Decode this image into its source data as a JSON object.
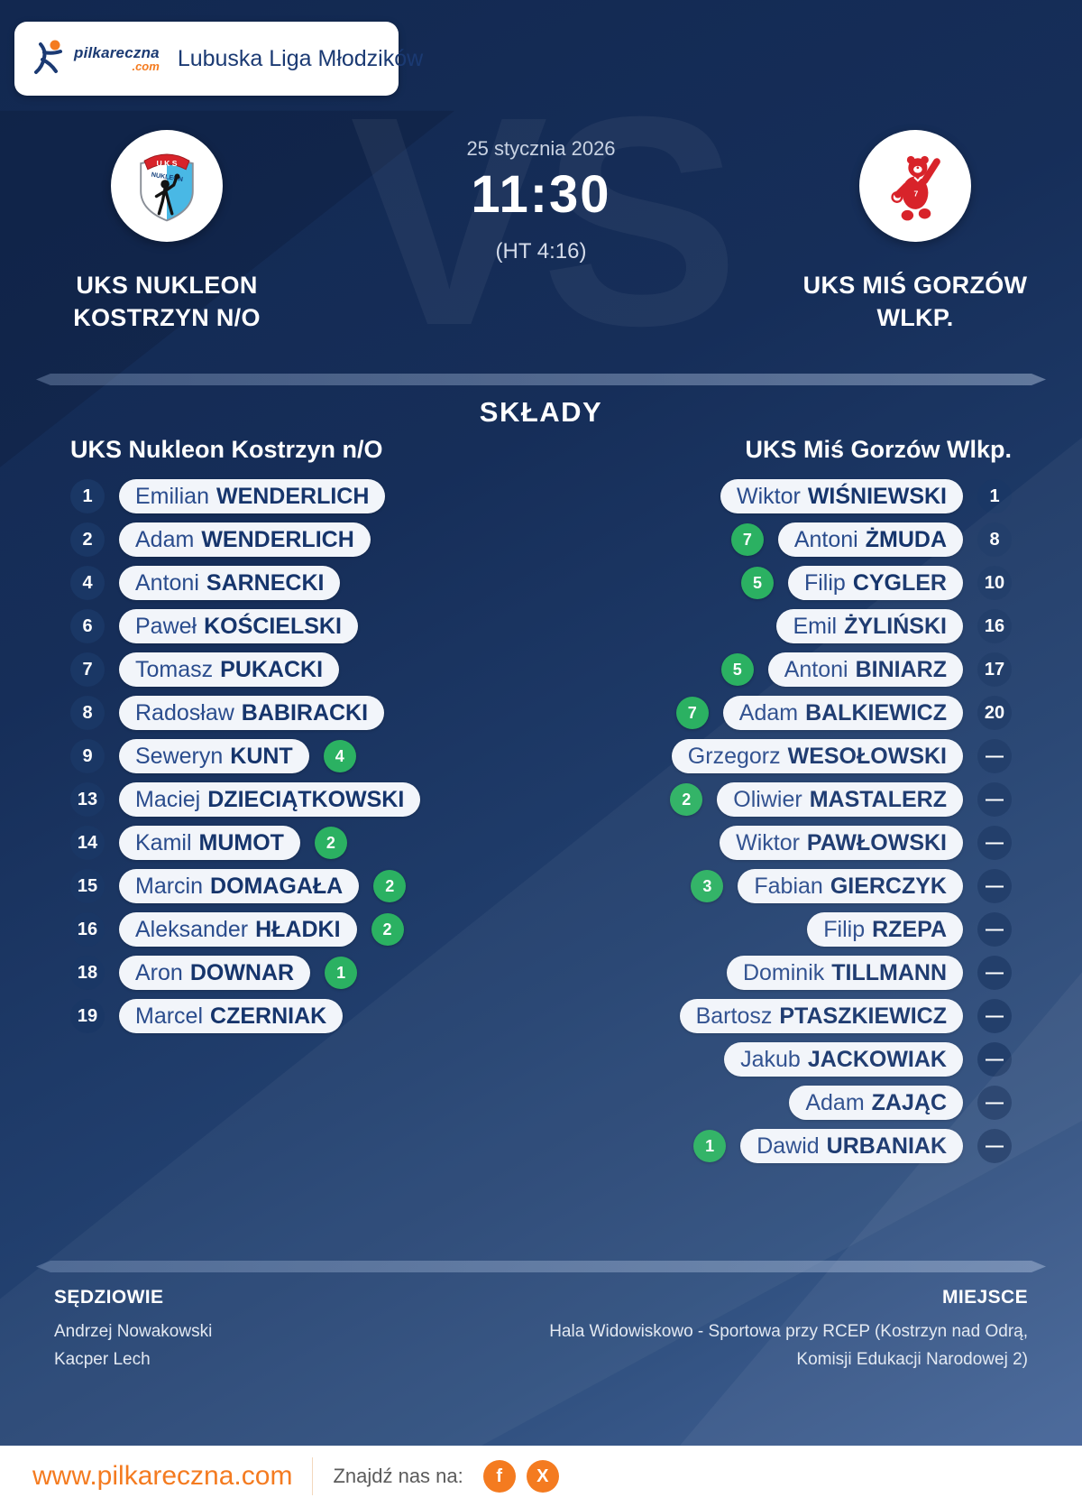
{
  "header": {
    "logo_text": "pilkareczna",
    "logo_tld": ".com",
    "league": "Lubuska Liga Młodzików"
  },
  "match": {
    "date": "25 stycznia 2026",
    "time": "11:30",
    "halftime": "(HT 4:16)",
    "vs_watermark": "VS",
    "home": {
      "name_line1": "UKS NUKLEON",
      "name_line2": "KOSTRZYN N/O"
    },
    "away": {
      "name_line1": "UKS MIŚ GORZÓW",
      "name_line2": "WLKP."
    }
  },
  "lineups": {
    "title": "SKŁADY",
    "empty_number_symbol": "—",
    "home": {
      "team": "UKS Nukleon Kostrzyn n/O",
      "players": [
        {
          "number": "1",
          "first": "Emilian",
          "last": "WENDERLICH",
          "goals": ""
        },
        {
          "number": "2",
          "first": "Adam",
          "last": "WENDERLICH",
          "goals": ""
        },
        {
          "number": "4",
          "first": "Antoni",
          "last": "SARNECKI",
          "goals": ""
        },
        {
          "number": "6",
          "first": "Paweł",
          "last": "KOŚCIELSKI",
          "goals": ""
        },
        {
          "number": "7",
          "first": "Tomasz",
          "last": "PUKACKI",
          "goals": ""
        },
        {
          "number": "8",
          "first": "Radosław",
          "last": "BABIRACKI",
          "goals": ""
        },
        {
          "number": "9",
          "first": "Seweryn",
          "last": "KUNT",
          "goals": "4"
        },
        {
          "number": "13",
          "first": "Maciej",
          "last": "DZIECIĄTKOWSKI",
          "goals": ""
        },
        {
          "number": "14",
          "first": "Kamil",
          "last": "MUMOT",
          "goals": "2"
        },
        {
          "number": "15",
          "first": "Marcin",
          "last": "DOMAGAŁA",
          "goals": "2"
        },
        {
          "number": "16",
          "first": "Aleksander",
          "last": "HŁADKI",
          "goals": "2"
        },
        {
          "number": "18",
          "first": "Aron",
          "last": "DOWNAR",
          "goals": "1"
        },
        {
          "number": "19",
          "first": "Marcel",
          "last": "CZERNIAK",
          "goals": ""
        }
      ]
    },
    "away": {
      "team": "UKS Miś Gorzów Wlkp.",
      "players": [
        {
          "number": "1",
          "first": "Wiktor",
          "last": "WIŚNIEWSKI",
          "goals": ""
        },
        {
          "number": "8",
          "first": "Antoni",
          "last": "ŻMUDA",
          "goals": "7"
        },
        {
          "number": "10",
          "first": "Filip",
          "last": "CYGLER",
          "goals": "5"
        },
        {
          "number": "16",
          "first": "Emil",
          "last": "ŻYLIŃSKI",
          "goals": ""
        },
        {
          "number": "17",
          "first": "Antoni",
          "last": "BINIARZ",
          "goals": "5"
        },
        {
          "number": "20",
          "first": "Adam",
          "last": "BALKIEWICZ",
          "goals": "7"
        },
        {
          "number": "",
          "first": "Grzegorz",
          "last": "WESOŁOWSKI",
          "goals": ""
        },
        {
          "number": "",
          "first": "Oliwier",
          "last": "MASTALERZ",
          "goals": "2"
        },
        {
          "number": "",
          "first": "Wiktor",
          "last": "PAWŁOWSKI",
          "goals": ""
        },
        {
          "number": "",
          "first": "Fabian",
          "last": "GIERCZYK",
          "goals": "3"
        },
        {
          "number": "",
          "first": "Filip",
          "last": "RZEPA",
          "goals": ""
        },
        {
          "number": "",
          "first": "Dominik",
          "last": "TILLMANN",
          "goals": ""
        },
        {
          "number": "",
          "first": "Bartosz",
          "last": "PTASZKIEWICZ",
          "goals": ""
        },
        {
          "number": "",
          "first": "Jakub",
          "last": "JACKOWIAK",
          "goals": ""
        },
        {
          "number": "",
          "first": "Adam",
          "last": "ZAJĄC",
          "goals": ""
        },
        {
          "number": "",
          "first": "Dawid",
          "last": "URBANIAK",
          "goals": "1"
        }
      ]
    }
  },
  "officials": {
    "referees_label": "SĘDZIOWIE",
    "referees": [
      "Andrzej Nowakowski",
      "Kacper Lech"
    ],
    "venue_label": "MIEJSCE",
    "venue_line1": "Hala Widowiskowo - Sportowa przy RCEP (Kostrzyn nad Odrą,",
    "venue_line2": "Komisji Edukacji Narodowej 2)"
  },
  "footer": {
    "website": "www.pilkareczna.com",
    "find_us": "Znajdź nas na:",
    "social": [
      {
        "name": "facebook",
        "glyph": "f"
      },
      {
        "name": "x",
        "glyph": "X"
      }
    ]
  },
  "colors": {
    "accent_orange": "#F47B20",
    "goal_green": "#2BB162",
    "background_navy": "#132A52",
    "pill_background": "#F2F5FA",
    "pill_text_navy": "#1B3A73",
    "number_circle_navy": "#1A3765"
  }
}
